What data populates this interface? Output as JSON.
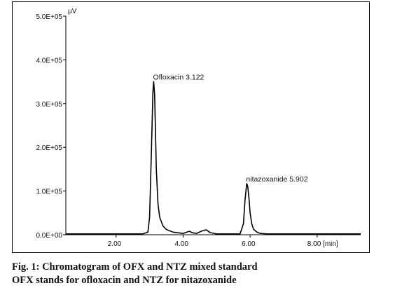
{
  "chart_data": {
    "type": "line",
    "y_unit": "μV",
    "x_unit": "[min]",
    "xlim": [
      0.5,
      9.3
    ],
    "ylim": [
      0,
      500000
    ],
    "x_ticks": [
      2,
      4,
      6,
      8
    ],
    "x_tick_labels": [
      "2.00",
      "4.00",
      "6.00",
      "8.00 [min]"
    ],
    "y_ticks": [
      0,
      100000,
      200000,
      300000,
      400000,
      500000
    ],
    "y_tick_labels": [
      "0.0E+00",
      "1.0E+05",
      "2.0E+05",
      "3.0E+05",
      "4.0E+05",
      "5.0E+05"
    ],
    "grid": false,
    "series": [
      {
        "color": "#000000",
        "x": [
          0.5,
          2.8,
          2.95,
          3.0,
          3.05,
          3.1,
          3.122,
          3.15,
          3.2,
          3.25,
          3.3,
          3.4,
          3.5,
          3.7,
          4.0,
          4.15,
          4.2,
          4.25,
          4.4,
          4.6,
          4.7,
          4.8,
          5.0,
          5.7,
          5.8,
          5.85,
          5.9,
          5.902,
          5.93,
          5.97,
          6.0,
          6.05,
          6.1,
          6.2,
          6.3,
          6.5,
          9.3
        ],
        "y": [
          2000,
          2000,
          6000,
          40000,
          180000,
          330000,
          350000,
          320000,
          150000,
          70000,
          40000,
          20000,
          12000,
          6000,
          3000,
          7000,
          8000,
          5000,
          3000,
          10000,
          11000,
          5000,
          2000,
          2000,
          25000,
          80000,
          117000,
          117000,
          110000,
          80000,
          50000,
          25000,
          13000,
          6000,
          3000,
          2000,
          2000
        ]
      }
    ],
    "annotations": [
      {
        "text": "Ofloxacin 3.122",
        "x": 3.122,
        "y": 350000
      },
      {
        "text": "nitazoxanide 5.902",
        "x": 5.902,
        "y": 117000
      }
    ]
  },
  "caption": {
    "line1": "Fig. 1: Chromatogram of OFX and NTZ mixed standard",
    "line2": "OFX stands for ofloxacin and NTZ for nitazoxanide"
  }
}
